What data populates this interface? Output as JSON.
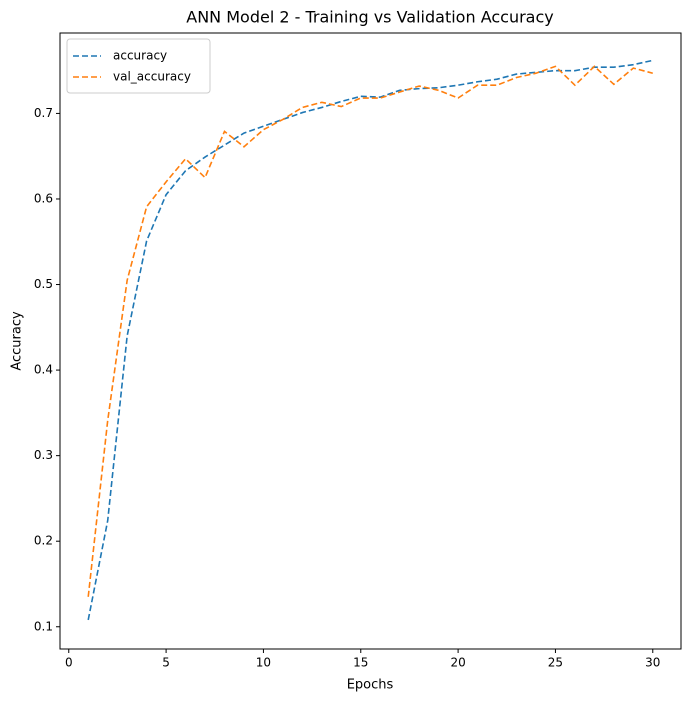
{
  "chart_data": {
    "type": "line",
    "title": "ANN Model 2 - Training vs Validation Accuracy",
    "xlabel": "Epochs",
    "ylabel": "Accuracy",
    "x": [
      1,
      2,
      3,
      4,
      5,
      6,
      7,
      8,
      9,
      10,
      11,
      12,
      13,
      14,
      15,
      16,
      17,
      18,
      19,
      20,
      21,
      22,
      23,
      24,
      25,
      26,
      27,
      28,
      29,
      30
    ],
    "series": [
      {
        "name": "accuracy",
        "color": "#1f77b4",
        "values": [
          0.108,
          0.224,
          0.44,
          0.551,
          0.605,
          0.633,
          0.649,
          0.663,
          0.677,
          0.685,
          0.693,
          0.701,
          0.707,
          0.714,
          0.72,
          0.719,
          0.727,
          0.729,
          0.73,
          0.733,
          0.737,
          0.74,
          0.746,
          0.748,
          0.75,
          0.75,
          0.754,
          0.754,
          0.757,
          0.762
        ]
      },
      {
        "name": "val_accuracy",
        "color": "#ff7f0e",
        "values": [
          0.135,
          0.341,
          0.505,
          0.591,
          0.62,
          0.647,
          0.625,
          0.679,
          0.661,
          0.681,
          0.693,
          0.707,
          0.713,
          0.708,
          0.718,
          0.718,
          0.725,
          0.732,
          0.727,
          0.718,
          0.733,
          0.733,
          0.742,
          0.747,
          0.755,
          0.733,
          0.755,
          0.734,
          0.753,
          0.747
        ]
      }
    ],
    "xlim": [
      -0.45,
      31.45
    ],
    "xticks": [
      0,
      5,
      10,
      15,
      20,
      25,
      30
    ],
    "ylim": [
      0.074,
      0.794
    ],
    "yticks": [
      0.1,
      0.2,
      0.3,
      0.4,
      0.5,
      0.6,
      0.7
    ],
    "line_style": "dashed",
    "legend": "upper left",
    "grid": false
  }
}
